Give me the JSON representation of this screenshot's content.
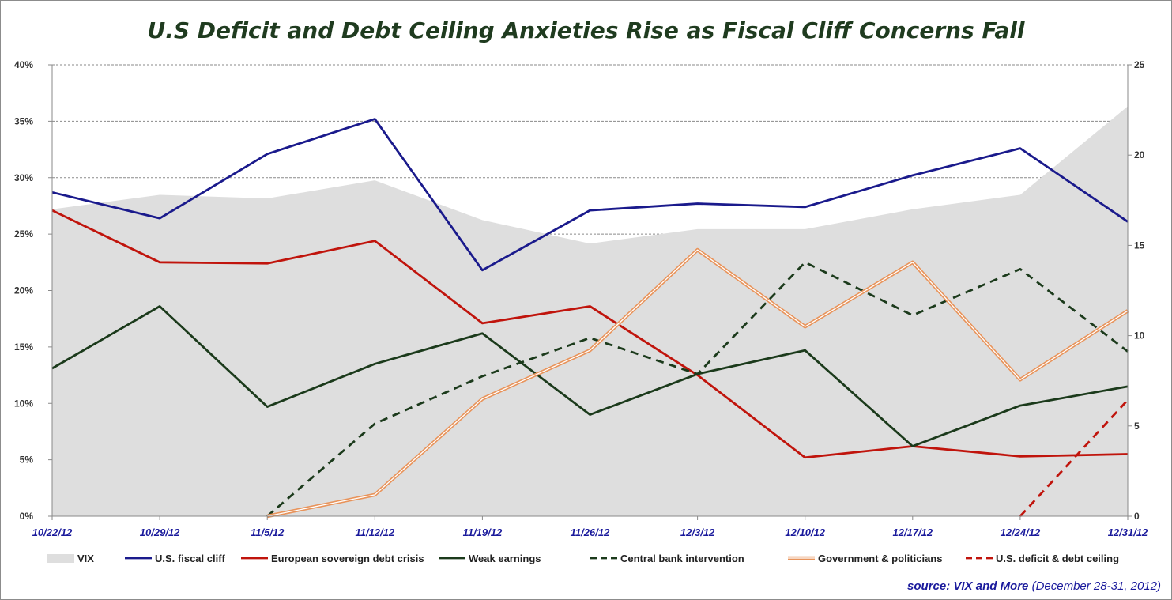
{
  "chart_data": {
    "type": "line",
    "title": "U.S Deficit and Debt Ceiling Anxieties Rise as Fiscal Cliff Concerns Fall",
    "categories": [
      "10/22/12",
      "10/29/12",
      "11/5/12",
      "11/12/12",
      "11/19/12",
      "11/26/12",
      "12/3/12",
      "12/10/12",
      "12/17/12",
      "12/24/12",
      "12/31/12"
    ],
    "y_left": {
      "min": 0,
      "max": 40,
      "step": 5,
      "unit": "%",
      "ticks": [
        "0%",
        "5%",
        "10%",
        "15%",
        "20%",
        "25%",
        "30%",
        "35%",
        "40%"
      ]
    },
    "y_right": {
      "min": 0,
      "max": 25,
      "step": 5,
      "ticks": [
        "0",
        "5",
        "10",
        "15",
        "20",
        "25"
      ]
    },
    "grid": true,
    "legend_position": "bottom",
    "series": [
      {
        "name": "VIX",
        "kind": "area",
        "axis": "right",
        "color": "#dedede",
        "values": [
          17.0,
          17.8,
          17.6,
          18.6,
          16.4,
          15.1,
          15.9,
          15.9,
          17.0,
          17.8,
          22.7
        ]
      },
      {
        "name": "U.S. fiscal cliff",
        "kind": "line",
        "axis": "left",
        "color": "#1a1a8c",
        "style": "solid",
        "values": [
          28.7,
          26.4,
          32.1,
          35.2,
          21.8,
          27.1,
          27.7,
          27.4,
          30.2,
          32.6,
          26.1
        ]
      },
      {
        "name": "European sovereign debt crisis",
        "kind": "line",
        "axis": "left",
        "color": "#c0140c",
        "style": "solid",
        "values": [
          27.1,
          22.5,
          22.4,
          24.4,
          17.1,
          18.6,
          12.5,
          5.2,
          6.2,
          5.3,
          5.5
        ]
      },
      {
        "name": "Weak earnings",
        "kind": "line",
        "axis": "left",
        "color": "#1b3a1b",
        "style": "solid",
        "values": [
          13.1,
          18.6,
          9.7,
          13.5,
          16.2,
          9.0,
          12.6,
          14.7,
          6.2,
          9.8,
          11.5
        ]
      },
      {
        "name": "Central bank intervention",
        "kind": "line",
        "axis": "left",
        "color": "#1b3a1b",
        "style": "dashed",
        "values": [
          null,
          null,
          0.0,
          8.2,
          12.4,
          15.8,
          12.6,
          22.5,
          17.8,
          21.9,
          14.6
        ]
      },
      {
        "name": "Government & politicians",
        "kind": "line",
        "axis": "left",
        "color": "#e8935a",
        "style": "double",
        "values": [
          null,
          null,
          0.0,
          1.9,
          10.4,
          14.7,
          23.6,
          16.8,
          22.5,
          12.1,
          18.2
        ]
      },
      {
        "name": "U.S. deficit & debt ceiling",
        "kind": "line",
        "axis": "left",
        "color": "#c0140c",
        "style": "dashed",
        "values": [
          null,
          null,
          null,
          null,
          null,
          null,
          null,
          null,
          null,
          0.0,
          10.3
        ]
      }
    ]
  },
  "source": {
    "prefix": "source:  VIX and More",
    "suffix": " (December 28-31, 2012)"
  }
}
